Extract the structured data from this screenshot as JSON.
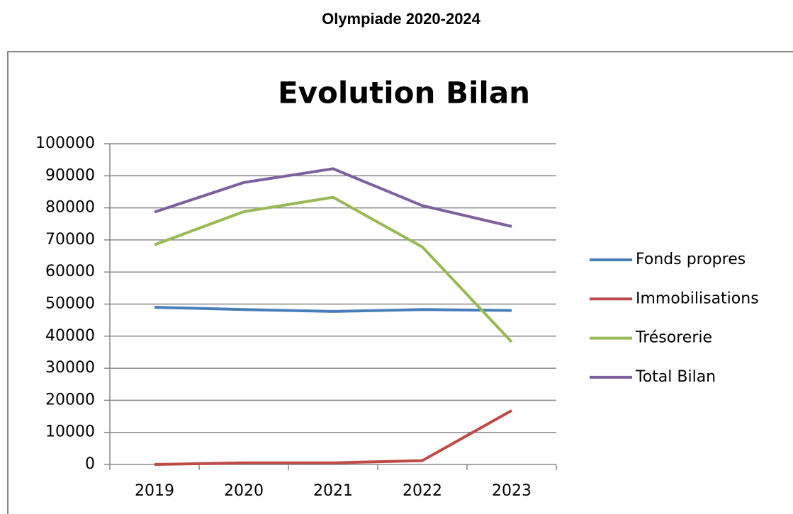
{
  "page_title": "Olympiade 2020-2024",
  "chart_data": {
    "type": "line",
    "title": "Evolution Bilan",
    "categories": [
      "2019",
      "2020",
      "2021",
      "2022",
      "2023"
    ],
    "series": [
      {
        "name": "Fonds propres",
        "color": "#4a7ebb",
        "values": [
          49000,
          48300,
          47700,
          48300,
          48000
        ]
      },
      {
        "name": "Immobilisations",
        "color": "#be4b48",
        "values": [
          0,
          500,
          500,
          1200,
          16800
        ]
      },
      {
        "name": "Trésorerie",
        "color": "#98b954",
        "values": [
          68500,
          78800,
          83300,
          67800,
          38200
        ]
      },
      {
        "name": "Total Bilan",
        "color": "#7d60a0",
        "values": [
          78700,
          87900,
          92200,
          80700,
          74200
        ]
      }
    ],
    "ylim": [
      0,
      100000
    ],
    "yticks": [
      0,
      10000,
      20000,
      30000,
      40000,
      50000,
      60000,
      70000,
      80000,
      90000,
      100000
    ],
    "grid": true,
    "legend": "right"
  }
}
